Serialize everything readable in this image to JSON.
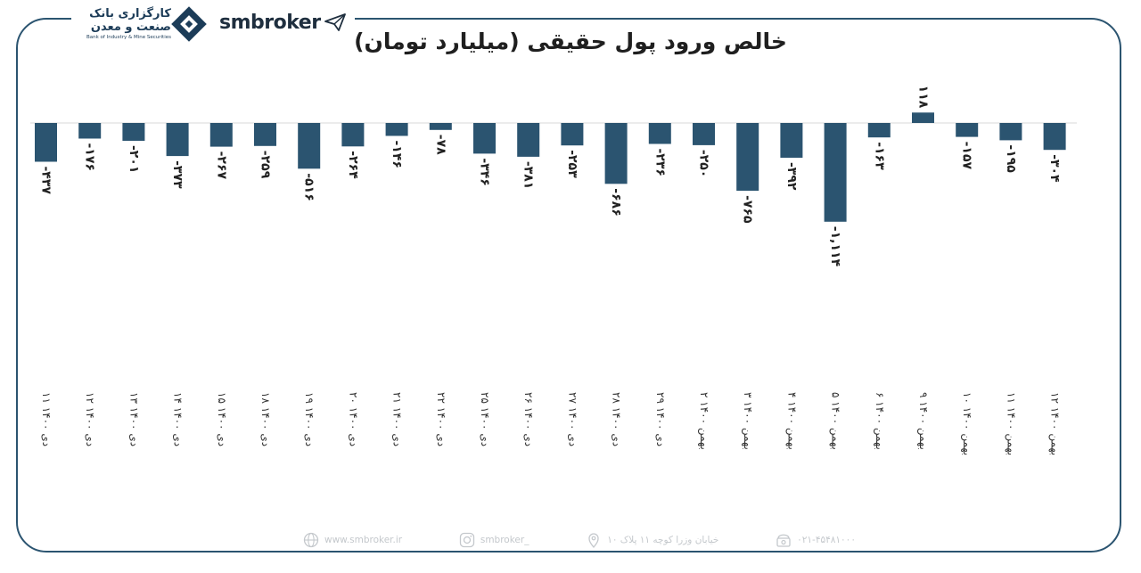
{
  "brand": {
    "name": "smbroker"
  },
  "logo": {
    "line1": "کارگزاری بانک",
    "line2": "صنعت و معدن",
    "line_en": "Bank of Industry & Mine Securities"
  },
  "chart_data": {
    "type": "bar",
    "title": "خالص ورود پول حقیقی (میلیارد تومان)",
    "categories": [
      "۱۱ دی ۱۴۰۰",
      "۱۲ دی ۱۴۰۰",
      "۱۳ دی ۱۴۰۰",
      "۱۴ دی ۱۴۰۰",
      "۱۵ دی ۱۴۰۰",
      "۱۸ دی ۱۴۰۰",
      "۱۹ دی ۱۴۰۰",
      "۲۰ دی ۱۴۰۰",
      "۲۱ دی ۱۴۰۰",
      "۲۲ دی ۱۴۰۰",
      "۲۵ دی ۱۴۰۰",
      "۲۶ دی ۱۴۰۰",
      "۲۷ دی ۱۴۰۰",
      "۲۸ دی ۱۴۰۰",
      "۲۹ دی ۱۴۰۰",
      "۲ بهمن ۱۴۰۰",
      "۳ بهمن ۱۴۰۰",
      "۴ بهمن ۱۴۰۰",
      "۵ بهمن ۱۴۰۰",
      "۶ بهمن ۱۴۰۰",
      "۹ بهمن ۱۴۰۰",
      "۱۰ بهمن ۱۴۰۰",
      "۱۱ بهمن ۱۴۰۰",
      "۱۲ بهمن ۱۴۰۰"
    ],
    "values": [
      -437,
      -176,
      -201,
      -373,
      -267,
      -259,
      -516,
      -264,
      -146,
      -78,
      -346,
      -381,
      -253,
      -686,
      -236,
      -250,
      -765,
      -392,
      -1114,
      -163,
      118,
      -157,
      -195,
      -304
    ],
    "labels": [
      "-۴۳۷",
      "-۱۷۶",
      "-۲۰۱",
      "-۳۷۳",
      "-۲۶۷",
      "-۲۵۹",
      "-۵۱۶",
      "-۲۶۴",
      "-۱۴۶",
      "-۷۸",
      "-۳۴۶",
      "-۳۸۱",
      "-۲۵۳",
      "-۶۸۶",
      "-۲۳۶",
      "-۲۵۰",
      "-۷۶۵",
      "-۳۹۲",
      "-۱,۱۱۴",
      "-۱۶۳",
      "۱۱۸",
      "-۱۵۷",
      "-۱۹۵",
      "-۳۰۴"
    ],
    "bar_color": "#2b5470",
    "grid": false,
    "legend": "none"
  },
  "footer": {
    "website": "www.smbroker.ir",
    "instagram": "smbroker_",
    "address": "خیابان وزرا کوچه ۱۱ پلاک ۱۰",
    "phone": "۰۲۱-۴۵۴۸۱۰۰۰"
  }
}
